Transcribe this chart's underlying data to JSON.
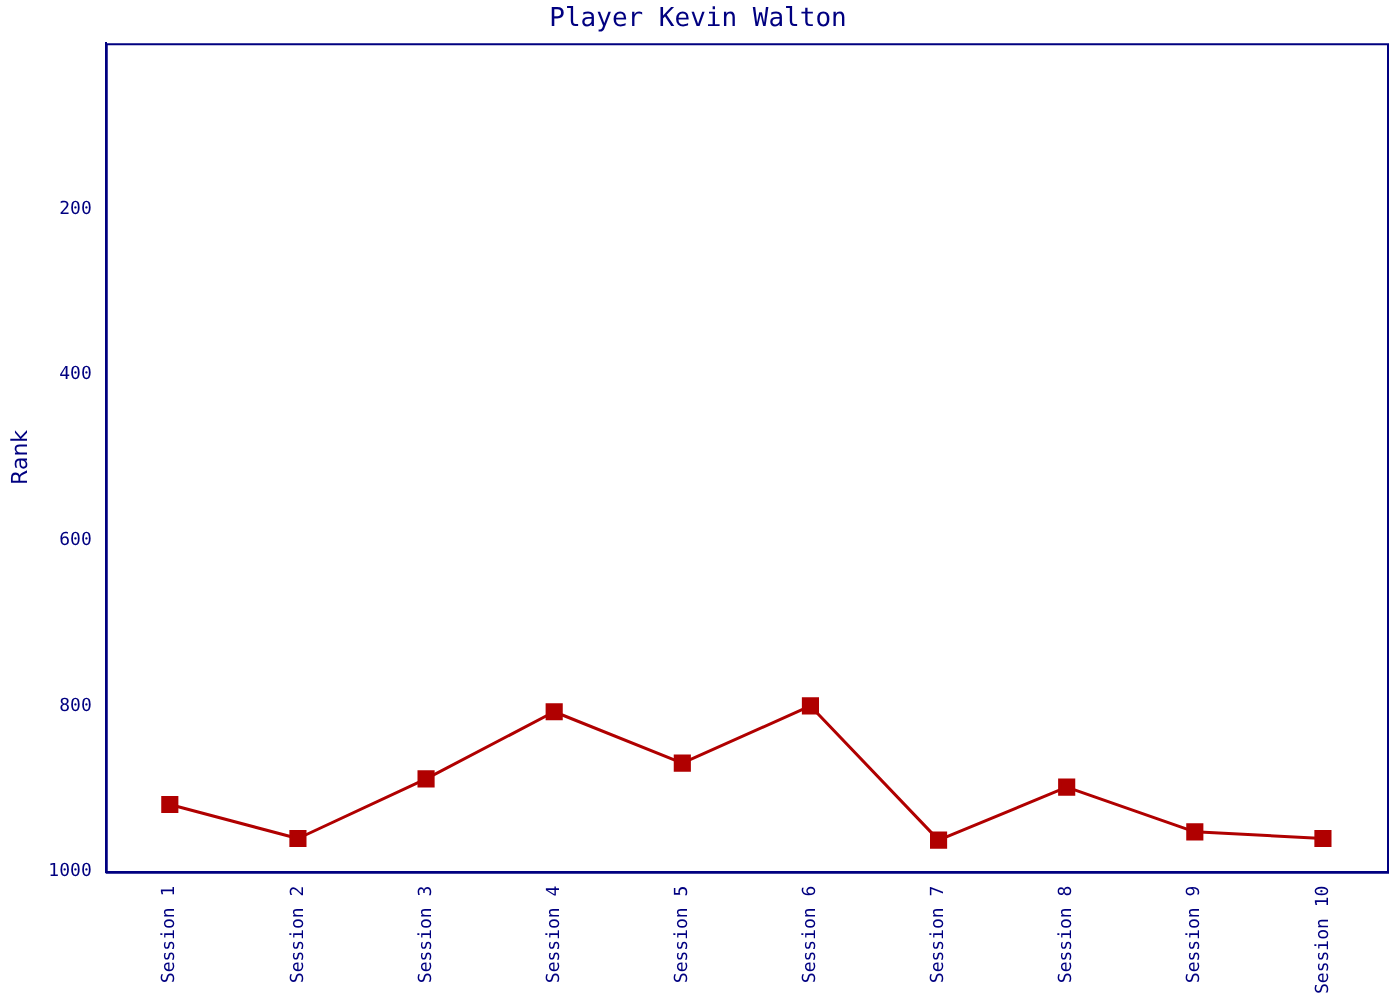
{
  "chart_data": {
    "type": "line",
    "title": "Player Kevin Walton",
    "ylabel": "Rank",
    "categories": [
      "Session 1",
      "Session 2",
      "Session 3",
      "Session 4",
      "Session 5",
      "Session 6",
      "Session 7",
      "Session 8",
      "Session 9",
      "Session 10"
    ],
    "series": [
      {
        "color": "#b00000",
        "values": [
          919,
          960,
          888,
          807,
          869,
          800,
          962,
          898,
          952,
          960
        ]
      }
    ],
    "ylim": [
      1000,
      0
    ],
    "yticks": [
      200,
      400,
      600,
      800,
      1000
    ],
    "grid": false,
    "legend": false,
    "marker": "square",
    "line_style": "solid"
  }
}
